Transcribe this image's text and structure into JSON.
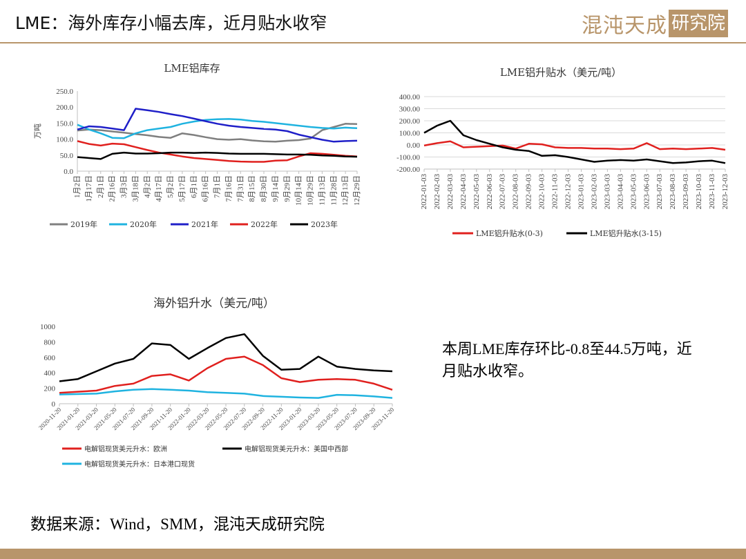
{
  "slide": {
    "title": "LME：海外库存小幅去库，近月贴水收窄",
    "logo_text": "混沌天成",
    "logo_box": "研究院",
    "summary": "本周LME库存环比-0.8至44.5万吨，近月贴水收窄。",
    "footer": "数据来源：Wind，SMM，混沌天成研究院"
  },
  "colors": {
    "gold": "#b8956a",
    "gray": "#7f7f7f",
    "lightblue": "#1fb3e0",
    "blue": "#1f1fc8",
    "red": "#e0201e",
    "black": "#000000"
  },
  "chart_data": [
    {
      "type": "line",
      "title": "LME铝库存",
      "ylabel": "万吨",
      "ylim": [
        0,
        250
      ],
      "yticks": [
        "0.0",
        "50.0",
        "100.0",
        "150.0",
        "200.0",
        "250.0"
      ],
      "x_labels": [
        "1月2日",
        "1月17日",
        "2月1日",
        "2月16日",
        "3月3日",
        "3月18日",
        "4月2日",
        "4月17日",
        "5月2日",
        "5月17日",
        "6月1日",
        "6月16日",
        "7月1日",
        "7月16日",
        "7月31日",
        "8月15日",
        "8月30日",
        "9月14日",
        "9月29日",
        "10月14日",
        "10月29日",
        "11月13日",
        "11月28日",
        "12月13日",
        "12月29日"
      ],
      "legend_position": "bottom",
      "series": [
        {
          "name": "2019年",
          "color": "#7f7f7f",
          "values": [
            127,
            130,
            128,
            124,
            120,
            116,
            112,
            107,
            104,
            118,
            113,
            106,
            100,
            98,
            100,
            96,
            93,
            92,
            95,
            97,
            102,
            128,
            138,
            148,
            147
          ]
        },
        {
          "name": "2020年",
          "color": "#1fb3e0",
          "values": [
            145,
            130,
            118,
            104,
            103,
            118,
            128,
            133,
            138,
            148,
            155,
            160,
            162,
            163,
            161,
            157,
            154,
            150,
            146,
            142,
            138,
            135,
            133,
            136,
            134
          ]
        },
        {
          "name": "2021年",
          "color": "#1f1fc8",
          "values": [
            130,
            140,
            138,
            133,
            128,
            195,
            190,
            185,
            178,
            172,
            164,
            156,
            148,
            142,
            138,
            135,
            132,
            130,
            125,
            114,
            106,
            98,
            92,
            94,
            95
          ]
        },
        {
          "name": "2022年",
          "color": "#e0201e",
          "values": [
            94,
            85,
            80,
            86,
            84,
            75,
            66,
            58,
            52,
            46,
            41,
            38,
            35,
            32,
            30,
            29,
            29,
            33,
            34,
            46,
            56,
            54,
            51,
            48,
            46
          ]
        },
        {
          "name": "2023年",
          "color": "#000000",
          "values": [
            44,
            41,
            38,
            54,
            58,
            55,
            55,
            56,
            58,
            58,
            57,
            58,
            57,
            55,
            54,
            54,
            54,
            53,
            52,
            52,
            51,
            49,
            48,
            46,
            45
          ]
        }
      ]
    },
    {
      "type": "line",
      "title": "LME铝升贴水（美元/吨）",
      "ylim": [
        -200,
        400
      ],
      "yticks": [
        "400.00",
        "300.00",
        "200.00",
        "100.00",
        "0.00",
        "-100.00",
        "-200.00"
      ],
      "x_labels": [
        "2022-01-03",
        "2022-02-03",
        "2022-03-03",
        "2022-04-03",
        "2022-05-03",
        "2022-06-03",
        "2022-07-03",
        "2022-08-03",
        "2022-09-03",
        "2022-10-03",
        "2022-11-03",
        "2022-12-03",
        "2023-01-03",
        "2023-02-03",
        "2023-03-03",
        "2023-04-03",
        "2023-05-03",
        "2023-06-03",
        "2023-07-03",
        "2023-08-03",
        "2023-09-03",
        "2023-10-03",
        "2023-11-03",
        "2023-12-03"
      ],
      "legend_position": "bottom",
      "series": [
        {
          "name": "LME铝升贴水(0-3)",
          "color": "#e0201e",
          "values": [
            -5,
            15,
            30,
            -20,
            -15,
            -10,
            -5,
            -30,
            10,
            5,
            -20,
            -25,
            -25,
            -30,
            -30,
            -35,
            -30,
            15,
            -35,
            -30,
            -35,
            -30,
            -25,
            -40
          ]
        },
        {
          "name": "LME铝升贴水(3-15)",
          "color": "#000000",
          "values": [
            100,
            160,
            200,
            80,
            40,
            10,
            -20,
            -40,
            -50,
            -90,
            -85,
            -100,
            -120,
            -140,
            -130,
            -125,
            -130,
            -120,
            -135,
            -150,
            -145,
            -135,
            -130,
            -150
          ]
        }
      ]
    },
    {
      "type": "line",
      "title": "海外铝升水（美元/吨）",
      "ylim": [
        0,
        1000
      ],
      "yticks": [
        "0",
        "200",
        "400",
        "600",
        "800",
        "1000"
      ],
      "x_labels": [
        "2020-11-20",
        "2021-01-20",
        "2021-03-20",
        "2021-05-20",
        "2021-07-20",
        "2021-09-20",
        "2021-11-20",
        "2022-01-20",
        "2022-03-20",
        "2022-05-20",
        "2022-07-20",
        "2022-09-20",
        "2022-11-20",
        "2023-01-20",
        "2023-03-20",
        "2023-05-20",
        "2023-07-20",
        "2023-09-20",
        "2023-11-20"
      ],
      "legend_position": "bottom",
      "series": [
        {
          "name": "电解铝现货美元升水：欧洲",
          "color": "#e0201e",
          "values": [
            140,
            155,
            170,
            230,
            260,
            360,
            380,
            300,
            460,
            580,
            610,
            500,
            330,
            280,
            310,
            320,
            310,
            260,
            180
          ]
        },
        {
          "name": "电解铝现货美元升水：美国中西部",
          "color": "#000000",
          "values": [
            290,
            320,
            420,
            520,
            580,
            780,
            760,
            580,
            720,
            850,
            900,
            620,
            440,
            450,
            610,
            480,
            450,
            430,
            420
          ]
        },
        {
          "name": "电解铝现货美元升水：日本港口现货",
          "color": "#1fb3e0",
          "values": [
            120,
            125,
            130,
            160,
            180,
            190,
            180,
            170,
            150,
            140,
            130,
            100,
            90,
            80,
            75,
            115,
            110,
            95,
            75
          ]
        }
      ]
    }
  ]
}
